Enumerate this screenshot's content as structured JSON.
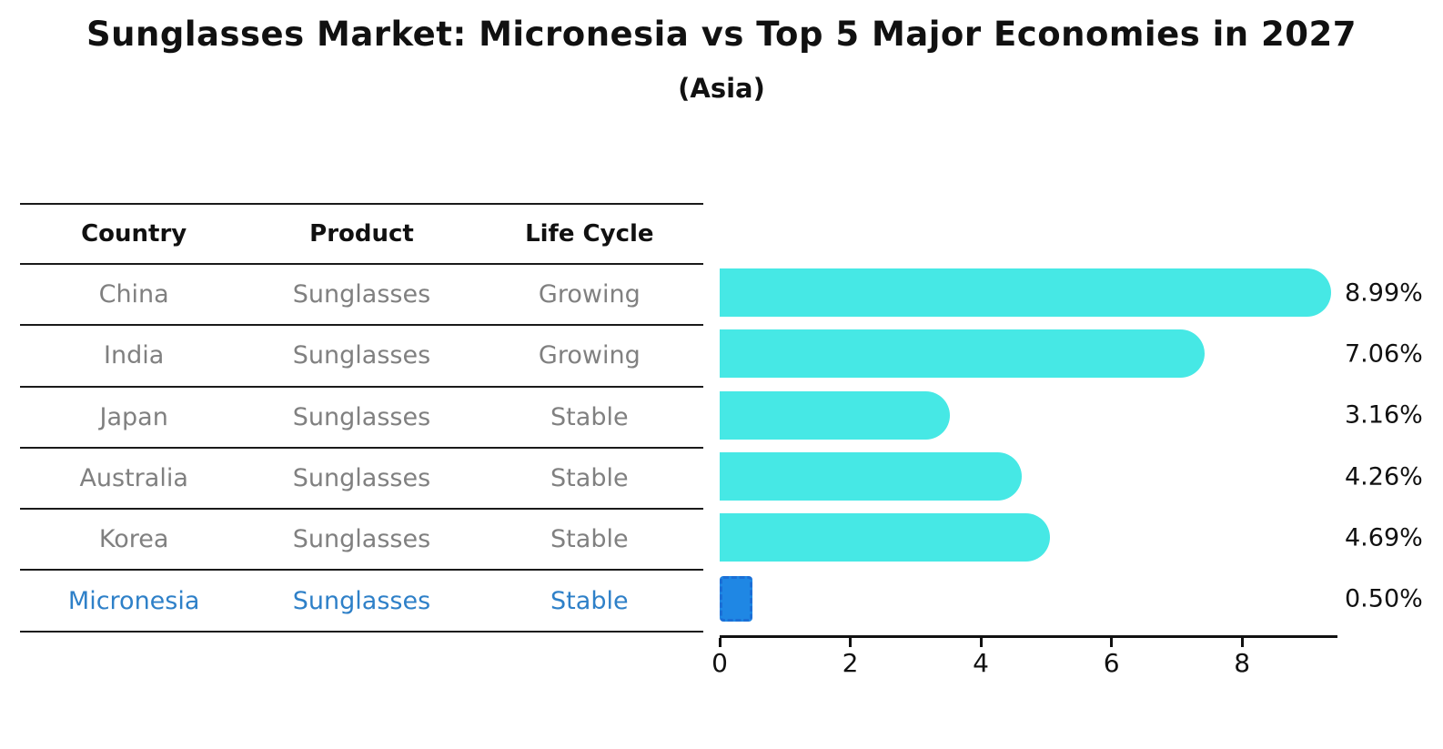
{
  "title": "Sunglasses Market: Micronesia vs Top 5 Major Economies in 2027",
  "subtitle": "(Asia)",
  "table": {
    "headers": [
      "Country",
      "Product",
      "Life Cycle"
    ],
    "rows": [
      {
        "country": "China",
        "product": "Sunglasses",
        "life_cycle": "Growing"
      },
      {
        "country": "India",
        "product": "Sunglasses",
        "life_cycle": "Growing"
      },
      {
        "country": "Japan",
        "product": "Sunglasses",
        "life_cycle": "Stable"
      },
      {
        "country": "Australia",
        "product": "Sunglasses",
        "life_cycle": "Stable"
      },
      {
        "country": "Korea",
        "product": "Sunglasses",
        "life_cycle": "Stable"
      },
      {
        "country": "Micronesia",
        "product": "Sunglasses",
        "life_cycle": "Stable"
      }
    ]
  },
  "chart_data": {
    "type": "bar",
    "orientation": "horizontal",
    "title": "Sunglasses Market: Micronesia vs Top 5 Major Economies in 2027",
    "subtitle": "(Asia)",
    "categories": [
      "China",
      "India",
      "Japan",
      "Australia",
      "Korea",
      "Micronesia"
    ],
    "values": [
      8.99,
      7.06,
      3.16,
      4.26,
      4.69,
      0.5
    ],
    "value_labels": [
      "8.99%",
      "7.06%",
      "3.16%",
      "4.26%",
      "4.69%",
      "0.50%"
    ],
    "x_ticks": [
      0,
      2,
      4,
      6,
      8
    ],
    "xlim": [
      0,
      9.46
    ],
    "grid": false,
    "legend": "none",
    "bar_color": "#46e8e5",
    "highlight_index": 5,
    "highlight_bar_color": "#1f87e4",
    "highlight_text_color": "#2e80c8"
  },
  "colors": {
    "background": "#ffffff",
    "table_text": "#808080",
    "header_text": "#111111",
    "line": "#1a1a1a"
  }
}
